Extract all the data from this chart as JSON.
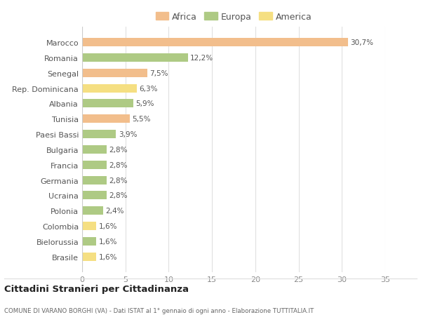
{
  "categories": [
    "Marocco",
    "Romania",
    "Senegal",
    "Rep. Dominicana",
    "Albania",
    "Tunisia",
    "Paesi Bassi",
    "Bulgaria",
    "Francia",
    "Germania",
    "Ucraina",
    "Polonia",
    "Colombia",
    "Bielorussia",
    "Brasile"
  ],
  "values": [
    30.7,
    12.2,
    7.5,
    6.3,
    5.9,
    5.5,
    3.9,
    2.8,
    2.8,
    2.8,
    2.8,
    2.4,
    1.6,
    1.6,
    1.6
  ],
  "labels": [
    "30,7%",
    "12,2%",
    "7,5%",
    "6,3%",
    "5,9%",
    "5,5%",
    "3,9%",
    "2,8%",
    "2,8%",
    "2,8%",
    "2,8%",
    "2,4%",
    "1,6%",
    "1,6%",
    "1,6%"
  ],
  "colors": [
    "#F2BE8C",
    "#AECA84",
    "#F2BE8C",
    "#F5DF82",
    "#AECA84",
    "#F2BE8C",
    "#AECA84",
    "#AECA84",
    "#AECA84",
    "#AECA84",
    "#AECA84",
    "#AECA84",
    "#F5DF82",
    "#AECA84",
    "#F5DF82"
  ],
  "legend_labels": [
    "Africa",
    "Europa",
    "America"
  ],
  "legend_colors": [
    "#F2BE8C",
    "#AECA84",
    "#F5DF82"
  ],
  "xlim": [
    0,
    35
  ],
  "xticks": [
    0,
    5,
    10,
    15,
    20,
    25,
    30,
    35
  ],
  "title": "Cittadini Stranieri per Cittadinanza",
  "subtitle": "COMUNE DI VARANO BORGHI (VA) - Dati ISTAT al 1° gennaio di ogni anno - Elaborazione TUTTITALIA.IT",
  "background_color": "#ffffff",
  "grid_color": "#e0e0e0"
}
